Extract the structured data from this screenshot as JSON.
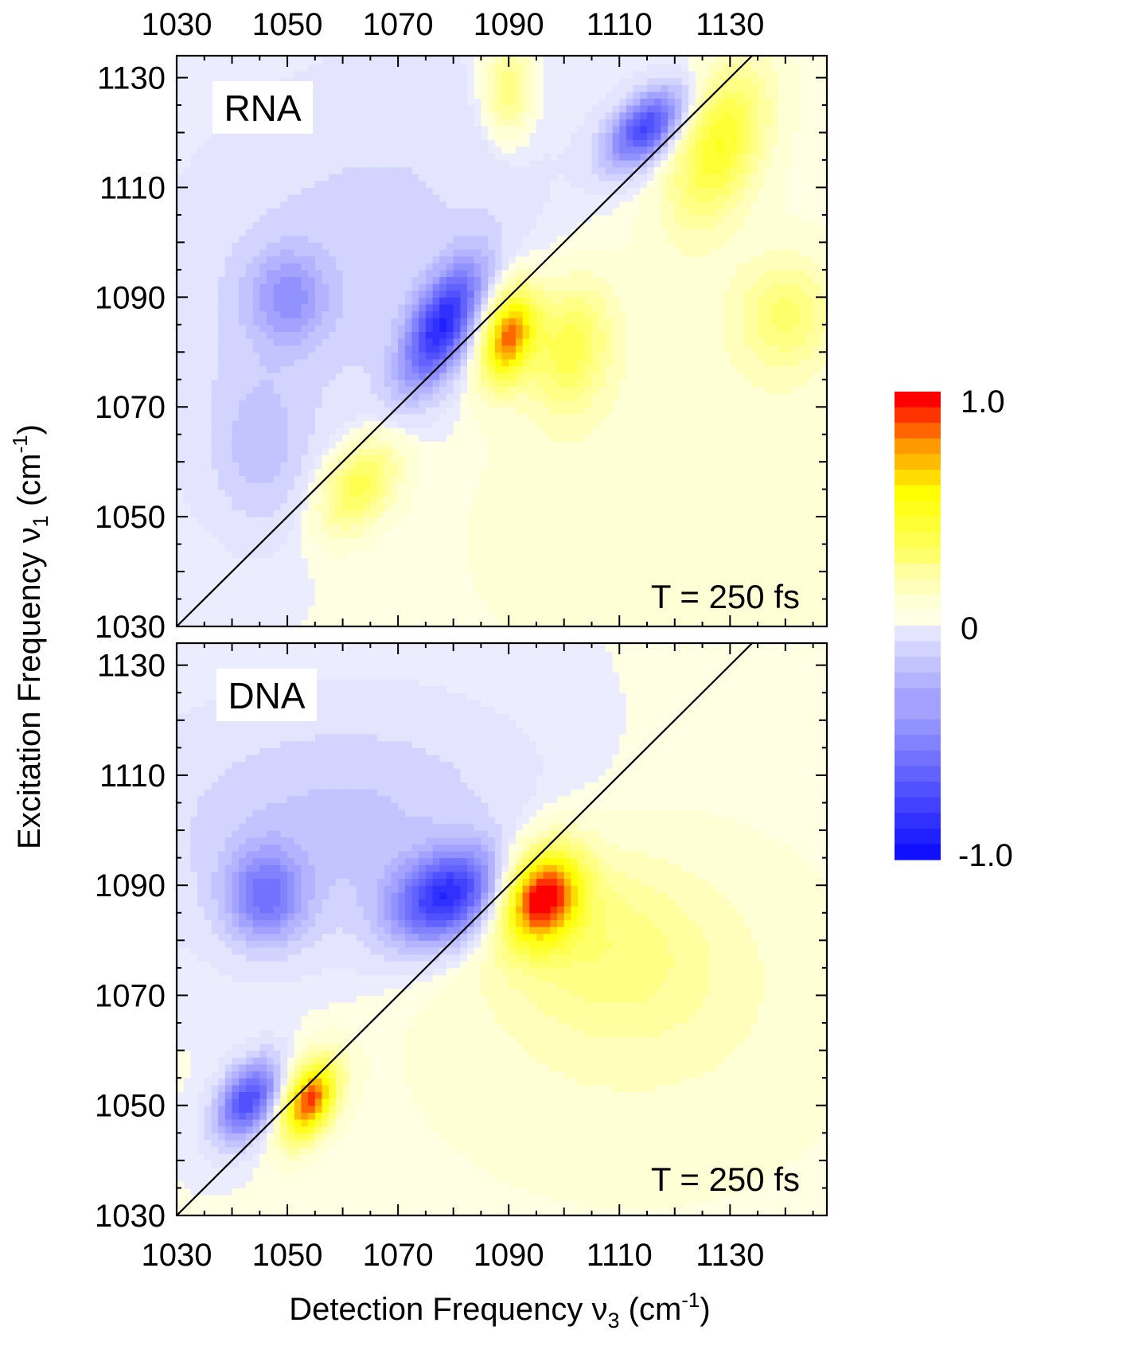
{
  "chart_data": [
    {
      "type": "heatmap",
      "panel_label": "RNA",
      "annotation": "T = 250 fs",
      "xlim": [
        1030,
        1147.5
      ],
      "ylim": [
        1030,
        1134
      ],
      "xticks": [
        1030,
        1050,
        1070,
        1090,
        1110,
        1130
      ],
      "yticks": [
        1030,
        1050,
        1070,
        1090,
        1110,
        1130
      ],
      "x_tick_labels_position": "top",
      "diagonal_line": true,
      "peaks": [
        {
          "x": 1078,
          "y": 1085,
          "amp": -0.78,
          "sx": 5,
          "sy": 8,
          "rho": 0.6
        },
        {
          "x": 1090,
          "y": 1083,
          "amp": 0.85,
          "sx": 3.5,
          "sy": 6,
          "rho": 0.3
        },
        {
          "x": 1115,
          "y": 1121,
          "amp": -0.72,
          "sx": 5,
          "sy": 5,
          "rho": 0.5
        },
        {
          "x": 1128,
          "y": 1118,
          "amp": 0.5,
          "sx": 6,
          "sy": 10,
          "rho": 0.4
        },
        {
          "x": 1063,
          "y": 1056,
          "amp": 0.42,
          "sx": 5,
          "sy": 6,
          "rho": 0.4
        },
        {
          "x": 1050,
          "y": 1090,
          "amp": -0.3,
          "sx": 5,
          "sy": 6,
          "rho": 0
        },
        {
          "x": 1101,
          "y": 1081,
          "amp": 0.38,
          "sx": 5,
          "sy": 8,
          "rho": 0.2
        },
        {
          "x": 1140,
          "y": 1087,
          "amp": 0.28,
          "sx": 6,
          "sy": 7,
          "rho": 0
        },
        {
          "x": 1090,
          "y": 1128,
          "amp": 0.32,
          "sx": 3,
          "sy": 6,
          "rho": 0
        },
        {
          "x": 1062,
          "y": 1095,
          "amp": -0.14,
          "sx": 25,
          "sy": 25,
          "rho": 0.3
        },
        {
          "x": 1045,
          "y": 1062,
          "amp": -0.16,
          "sx": 6,
          "sy": 10,
          "rho": 0
        },
        {
          "x": 1118,
          "y": 1060,
          "amp": 0.09,
          "sx": 30,
          "sy": 30,
          "rho": 0
        }
      ]
    },
    {
      "type": "heatmap",
      "panel_label": "DNA",
      "annotation": "T = 250 fs",
      "xlim": [
        1030,
        1147.5
      ],
      "ylim": [
        1030,
        1134
      ],
      "xticks": [
        1030,
        1050,
        1070,
        1090,
        1110,
        1130
      ],
      "yticks": [
        1030,
        1050,
        1070,
        1090,
        1110,
        1130
      ],
      "x_tick_labels_position": "bottom",
      "diagonal_line": true,
      "peaks": [
        {
          "x": 1079,
          "y": 1088,
          "amp": -0.8,
          "sx": 7,
          "sy": 6,
          "rho": 0.3
        },
        {
          "x": 1096,
          "y": 1088,
          "amp": 0.95,
          "sx": 5,
          "sy": 6,
          "rho": 0.2
        },
        {
          "x": 1046,
          "y": 1088,
          "amp": -0.45,
          "sx": 5,
          "sy": 6,
          "rho": 0
        },
        {
          "x": 1043,
          "y": 1051,
          "amp": -0.7,
          "sx": 4,
          "sy": 5,
          "rho": 0.4
        },
        {
          "x": 1054,
          "y": 1051,
          "amp": 0.92,
          "sx": 3.5,
          "sy": 5,
          "rho": 0.4
        },
        {
          "x": 1106,
          "y": 1080,
          "amp": 0.22,
          "sx": 15,
          "sy": 12,
          "rho": -0.2
        },
        {
          "x": 1062,
          "y": 1100,
          "amp": -0.2,
          "sx": 25,
          "sy": 15,
          "rho": 0
        },
        {
          "x": 1112,
          "y": 1068,
          "amp": 0.1,
          "sx": 30,
          "sy": 25,
          "rho": 0
        }
      ]
    }
  ],
  "axes": {
    "xlabel": "Detection Frequency ν",
    "xlabel_sub": "3",
    "xlabel_unit": "(cm",
    "xlabel_sup": "-1",
    "xlabel_close": ")",
    "ylabel": "Excitation Frequency  ν",
    "ylabel_sub": "1",
    "ylabel_unit": "(cm",
    "ylabel_sup": "-1",
    "ylabel_close": ")"
  },
  "colorbar": {
    "range": [
      -1.0,
      1.0
    ],
    "levels": 15,
    "labels": [
      "1.0",
      "0",
      "-1.0"
    ],
    "colors": {
      "max": "#ff0000",
      "orange": "#ff9900",
      "yellow": "#ffff00",
      "zero_pos": "#fffff0",
      "zero_neg": "#f4f4ff",
      "min": "#0000ff"
    }
  }
}
